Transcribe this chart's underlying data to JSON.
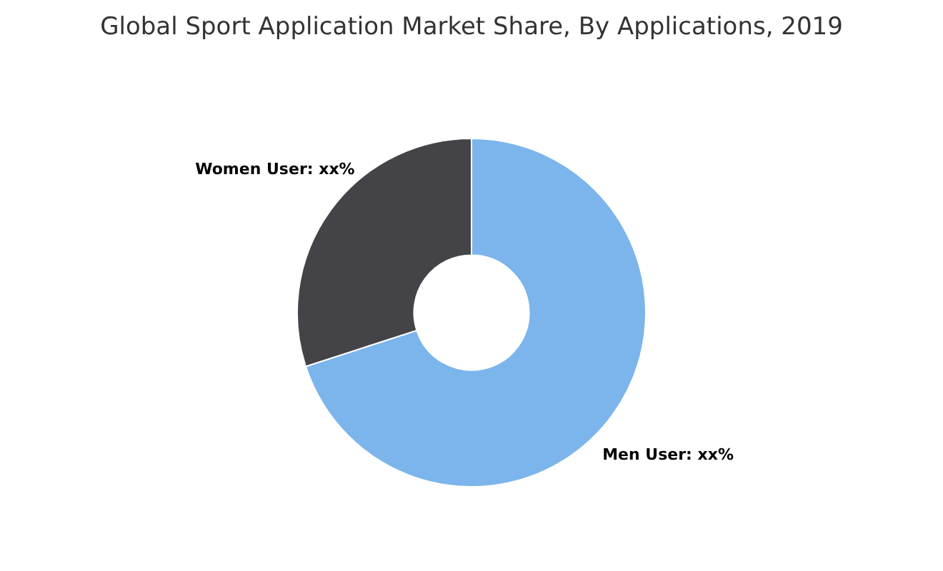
{
  "chart_data": {
    "type": "donut",
    "title": "Global Sport Application Market Share, By Applications, 2019",
    "categories": [
      "Men User",
      "Women User"
    ],
    "values": [
      70,
      30
    ],
    "colors": [
      "#7cb5ec",
      "#434348"
    ],
    "value_labels": [
      "xx%",
      "xx%"
    ]
  }
}
